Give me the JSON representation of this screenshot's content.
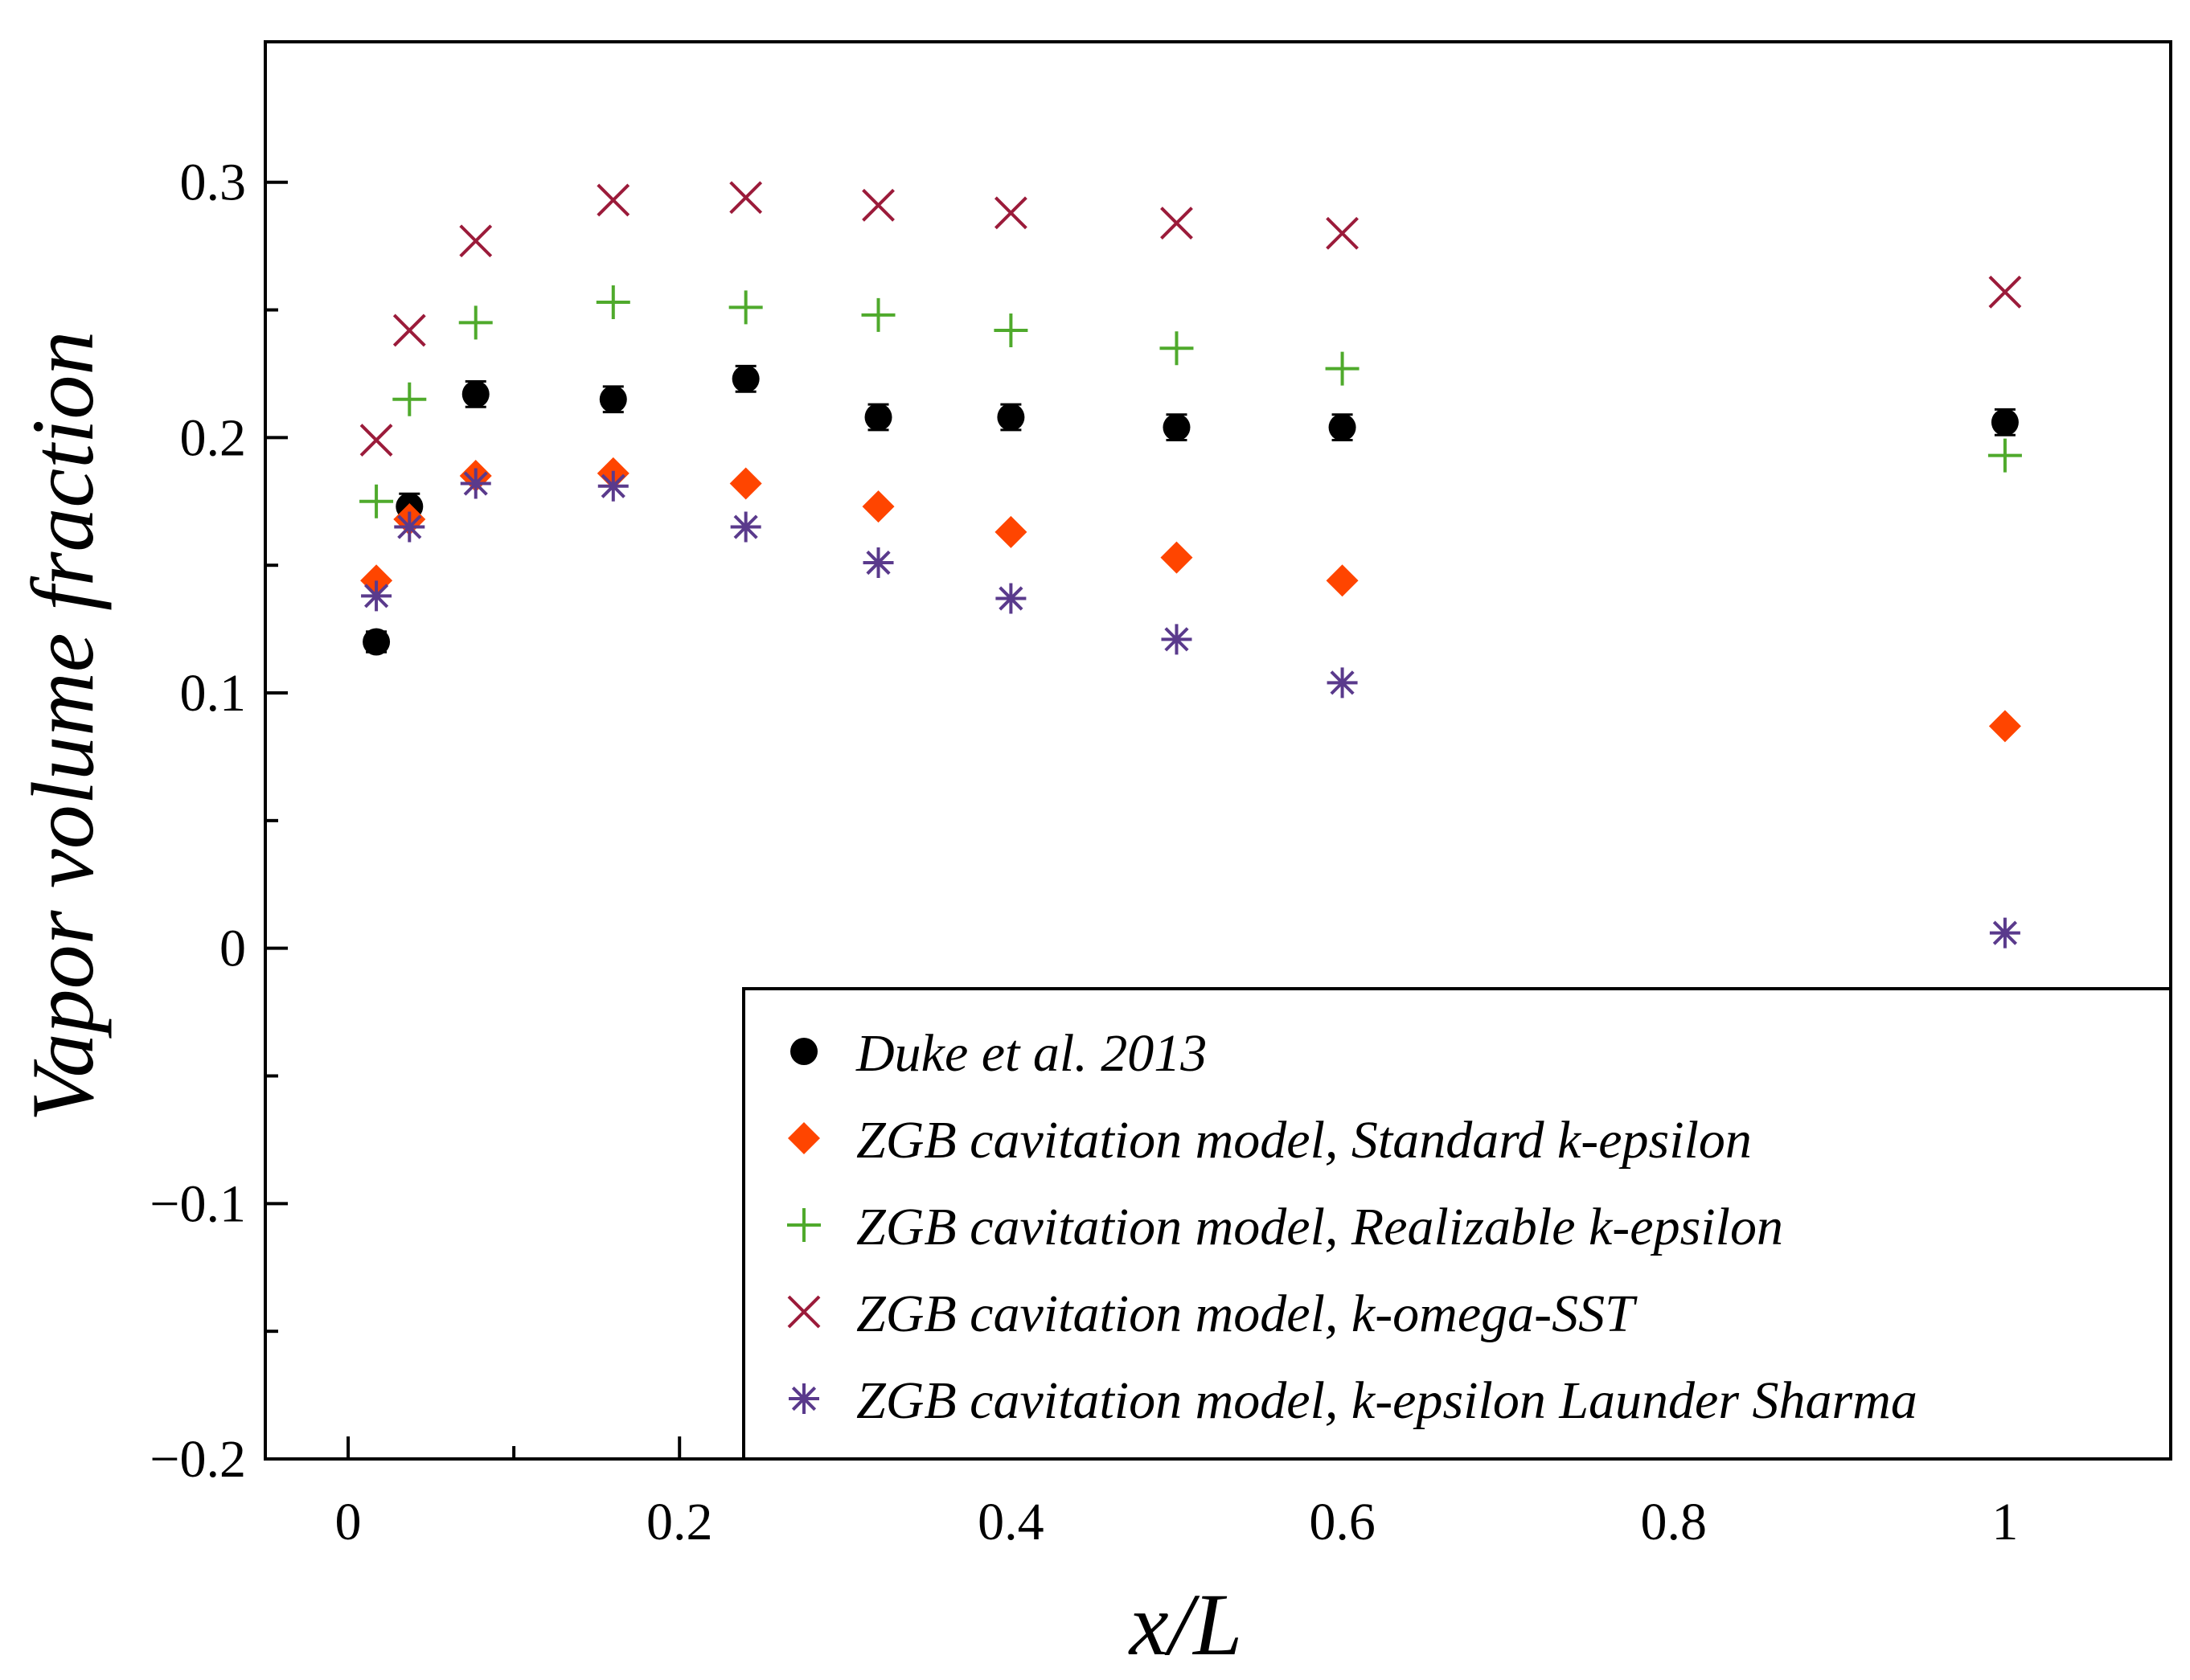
{
  "chart_data": {
    "type": "scatter",
    "title": "",
    "xlabel": "x/L",
    "ylabel": "Vapor volume fraction",
    "xlim": [
      -0.05,
      1.1
    ],
    "ylim": [
      -0.2,
      0.355
    ],
    "x_ticks": [
      {
        "value": 0,
        "label": "0"
      },
      {
        "value": 0.2,
        "label": "0.2"
      },
      {
        "value": 0.4,
        "label": "0.4"
      },
      {
        "value": 0.6,
        "label": "0.6"
      },
      {
        "value": 0.8,
        "label": "0.8"
      },
      {
        "value": 1,
        "label": "1"
      }
    ],
    "x_minor_ticks": [
      0.1,
      0.3,
      0.5,
      0.7,
      0.9
    ],
    "y_ticks": [
      {
        "value": 0.3,
        "label": "0.3"
      },
      {
        "value": 0.2,
        "label": "0.2"
      },
      {
        "value": 0.1,
        "label": "0.1"
      },
      {
        "value": 0,
        "label": "0"
      },
      {
        "value": -0.1,
        "label": "−0.1"
      },
      {
        "value": -0.2,
        "label": "−0.2"
      }
    ],
    "y_minor_ticks": [
      0.25,
      0.15,
      0.05,
      -0.05,
      -0.15
    ],
    "grid": false,
    "legend_position": "bottom-right",
    "series": [
      {
        "name": "Duke et al. 2013",
        "marker": "circle-errorbar",
        "color": "#000000",
        "x": [
          0.017,
          0.037,
          0.077,
          0.16,
          0.24,
          0.32,
          0.4,
          0.5,
          0.6,
          1.0
        ],
        "y": [
          0.12,
          0.173,
          0.217,
          0.215,
          0.223,
          0.208,
          0.208,
          0.204,
          0.204,
          0.206
        ],
        "error": [
          0.004,
          0.005,
          0.005,
          0.005,
          0.005,
          0.005,
          0.005,
          0.005,
          0.005,
          0.005
        ]
      },
      {
        "name": "ZGB cavitation model, Standard k-epsilon",
        "marker": "diamond",
        "color": "#ff4500",
        "x": [
          0.017,
          0.037,
          0.077,
          0.16,
          0.24,
          0.32,
          0.4,
          0.5,
          0.6,
          1.0
        ],
        "y": [
          0.144,
          0.168,
          0.185,
          0.186,
          0.182,
          0.173,
          0.163,
          0.153,
          0.144,
          0.087
        ]
      },
      {
        "name": "ZGB cavitation model, Realizable k-epsilon",
        "marker": "plus",
        "color": "#4faa2c",
        "x": [
          0.017,
          0.037,
          0.077,
          0.16,
          0.24,
          0.32,
          0.4,
          0.5,
          0.6,
          1.0
        ],
        "y": [
          0.175,
          0.215,
          0.245,
          0.253,
          0.251,
          0.248,
          0.242,
          0.235,
          0.227,
          0.193
        ]
      },
      {
        "name": "ZGB cavitation model, k-omega-SST",
        "marker": "x",
        "color": "#9b1b3a",
        "x": [
          0.017,
          0.037,
          0.077,
          0.16,
          0.24,
          0.32,
          0.4,
          0.5,
          0.6,
          1.0
        ],
        "y": [
          0.199,
          0.242,
          0.277,
          0.293,
          0.294,
          0.291,
          0.288,
          0.284,
          0.28,
          0.257
        ]
      },
      {
        "name": "ZGB cavitation model, k-epsilon Launder Sharma",
        "marker": "asterisk",
        "color": "#5a3a8c",
        "x": [
          0.017,
          0.037,
          0.077,
          0.16,
          0.24,
          0.32,
          0.4,
          0.5,
          0.6,
          1.0
        ],
        "y": [
          0.138,
          0.165,
          0.182,
          0.181,
          0.165,
          0.151,
          0.137,
          0.121,
          0.104,
          0.006
        ]
      }
    ]
  }
}
